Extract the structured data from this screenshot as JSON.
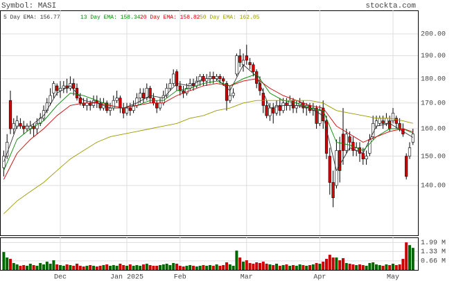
{
  "chart_data": {
    "type": "candlestick",
    "symbol": "Symbol: MASI",
    "site": "stockta.com",
    "categories": [
      null,
      null,
      null,
      null,
      null,
      null,
      null,
      null,
      null,
      null,
      null,
      null,
      null,
      null,
      null,
      null,
      null,
      "Dec",
      null,
      null,
      null,
      null,
      null,
      null,
      null,
      null,
      null,
      null,
      null,
      null,
      null,
      null,
      null,
      null,
      null,
      null,
      null,
      "Jan 2025",
      null,
      null,
      null,
      null,
      null,
      null,
      null,
      null,
      null,
      null,
      null,
      null,
      null,
      null,
      null,
      "Feb",
      null,
      null,
      null,
      null,
      null,
      null,
      null,
      null,
      null,
      null,
      null,
      null,
      null,
      null,
      null,
      null,
      null,
      null,
      null,
      "Mar",
      null,
      null,
      null,
      null,
      null,
      null,
      null,
      null,
      null,
      null,
      null,
      null,
      null,
      null,
      null,
      null,
      null,
      null,
      null,
      null,
      null,
      "Apr",
      null,
      null,
      null,
      null,
      null,
      null,
      null,
      null,
      null,
      null,
      null,
      null,
      null,
      null,
      null,
      null,
      null,
      null,
      null,
      null,
      null,
      "May",
      null,
      null,
      null,
      null,
      null,
      null
    ],
    "open": [
      146,
      150,
      171,
      160,
      161,
      162,
      161,
      160,
      160,
      161,
      160,
      162,
      164,
      167,
      170,
      174,
      177,
      175,
      176,
      177,
      176,
      178,
      176,
      172,
      170,
      169,
      170,
      169,
      171,
      170,
      168,
      170,
      167,
      168,
      171,
      172,
      168,
      166,
      168,
      167,
      169,
      172,
      174,
      172,
      176,
      172,
      170,
      168,
      170,
      173,
      176,
      178,
      183,
      177,
      175,
      174,
      176,
      178,
      177,
      179,
      181,
      179,
      180,
      181,
      180,
      181,
      180,
      178,
      171,
      173,
      182,
      190,
      186,
      190,
      187,
      186,
      183,
      178,
      174,
      169,
      165,
      168,
      166,
      169,
      167,
      170,
      169,
      171,
      168,
      169,
      170,
      168,
      169,
      167,
      168,
      162,
      168,
      163,
      150,
      141,
      140,
      152,
      158,
      152,
      157,
      155,
      152,
      153,
      151,
      149,
      151,
      157,
      161,
      162,
      163,
      162,
      163,
      163,
      164,
      162,
      160,
      150,
      150,
      155
    ],
    "high": [
      152,
      158,
      175,
      164,
      165,
      164,
      163,
      162,
      163,
      162,
      164,
      166,
      169,
      172,
      176,
      179,
      178,
      179,
      179,
      180,
      181,
      180,
      178,
      174,
      172,
      172,
      171,
      173,
      173,
      172,
      172,
      171,
      170,
      173,
      175,
      173,
      170,
      170,
      170,
      171,
      174,
      176,
      176,
      178,
      177,
      174,
      171,
      172,
      175,
      178,
      180,
      184,
      184,
      179,
      177,
      178,
      180,
      180,
      181,
      182,
      182,
      182,
      183,
      183,
      182,
      182,
      181,
      179,
      177,
      176,
      191,
      193,
      191,
      195,
      189,
      187,
      184,
      181,
      176,
      171,
      170,
      170,
      171,
      172,
      172,
      172,
      173,
      172,
      171,
      172,
      171,
      170,
      170,
      170,
      169,
      169,
      171,
      165,
      153,
      145,
      156,
      157,
      168,
      160,
      159,
      157,
      155,
      155,
      153,
      152,
      158,
      165,
      165,
      165,
      165,
      166,
      165,
      168,
      165,
      164,
      162,
      151,
      155,
      160
    ],
    "low": [
      143,
      149,
      158,
      158,
      160,
      160,
      158,
      159,
      158,
      157,
      158,
      161,
      163,
      166,
      169,
      172,
      173,
      172,
      174,
      174,
      175,
      173,
      171,
      169,
      168,
      167,
      167,
      168,
      168,
      167,
      167,
      166,
      165,
      167,
      170,
      166,
      164,
      165,
      165,
      166,
      168,
      170,
      170,
      171,
      170,
      169,
      166,
      167,
      169,
      172,
      175,
      177,
      175,
      173,
      172,
      173,
      175,
      175,
      176,
      177,
      177,
      177,
      178,
      178,
      179,
      178,
      177,
      167,
      170,
      172,
      181,
      185,
      183,
      186,
      184,
      181,
      176,
      173,
      166,
      164,
      163,
      162,
      165,
      165,
      166,
      167,
      167,
      166,
      166,
      168,
      166,
      165,
      166,
      165,
      160,
      161,
      160,
      149,
      137,
      133,
      139,
      141,
      147,
      151,
      152,
      150,
      150,
      148,
      147,
      147,
      150,
      156,
      160,
      161,
      160,
      161,
      159,
      162,
      160,
      159,
      157,
      142,
      149,
      154
    ],
    "close": [
      150,
      155,
      160,
      162,
      163,
      161,
      160,
      161,
      161,
      160,
      162,
      164,
      167,
      170,
      173,
      178,
      175,
      176,
      177,
      176,
      178,
      176,
      172,
      170,
      169,
      170,
      169,
      171,
      170,
      168,
      170,
      167,
      168,
      171,
      172,
      168,
      166,
      168,
      167,
      169,
      172,
      174,
      172,
      176,
      172,
      170,
      168,
      170,
      173,
      176,
      178,
      182,
      177,
      175,
      174,
      176,
      178,
      177,
      179,
      181,
      179,
      180,
      181,
      180,
      181,
      180,
      179,
      171,
      173,
      174,
      190,
      187,
      188,
      188,
      186,
      183,
      178,
      175,
      169,
      165,
      168,
      166,
      169,
      167,
      170,
      169,
      171,
      168,
      169,
      170,
      168,
      169,
      167,
      168,
      162,
      167,
      163,
      151,
      141,
      136,
      152,
      145,
      152,
      158,
      155,
      152,
      153,
      151,
      149,
      150,
      156,
      162,
      163,
      164,
      162,
      164,
      160,
      166,
      162,
      160,
      158,
      143,
      153,
      158
    ],
    "volume": [
      1.3,
      0.9,
      0.8,
      0.5,
      0.4,
      0.3,
      0.35,
      0.3,
      0.45,
      0.35,
      0.3,
      0.5,
      0.4,
      0.6,
      0.45,
      0.7,
      0.4,
      0.35,
      0.3,
      0.4,
      0.35,
      0.3,
      0.45,
      0.3,
      0.25,
      0.3,
      0.35,
      0.3,
      0.25,
      0.3,
      0.35,
      0.4,
      0.3,
      0.35,
      0.3,
      0.45,
      0.35,
      0.3,
      0.4,
      0.3,
      0.35,
      0.3,
      0.4,
      0.45,
      0.35,
      0.3,
      0.3,
      0.35,
      0.4,
      0.45,
      0.35,
      0.5,
      0.45,
      0.3,
      0.25,
      0.3,
      0.35,
      0.3,
      0.25,
      0.3,
      0.35,
      0.3,
      0.35,
      0.3,
      0.4,
      0.3,
      0.35,
      0.55,
      0.4,
      0.3,
      1.4,
      0.9,
      0.6,
      0.7,
      0.5,
      0.45,
      0.55,
      0.5,
      0.6,
      0.45,
      0.4,
      0.35,
      0.45,
      0.3,
      0.35,
      0.4,
      0.3,
      0.35,
      0.3,
      0.4,
      0.35,
      0.3,
      0.35,
      0.4,
      0.5,
      0.45,
      0.6,
      0.8,
      1.1,
      0.9,
      0.9,
      0.7,
      0.85,
      0.5,
      0.45,
      0.4,
      0.35,
      0.4,
      0.35,
      0.3,
      0.5,
      0.55,
      0.4,
      0.35,
      0.3,
      0.4,
      0.35,
      0.45,
      0.35,
      0.4,
      0.8,
      2.0,
      1.8,
      1.6
    ],
    "up_color": "#ffffff",
    "down_color": "#dd0000",
    "vol_up_color": "#006600",
    "vol_down_color": "#cc0000",
    "series": [
      {
        "name": "5 Day EMA: 156.77",
        "color": "#333333",
        "x": [
          0,
          4,
          8,
          12,
          16,
          20,
          24,
          28,
          32,
          36,
          40,
          44,
          48,
          52,
          56,
          60,
          64,
          68,
          72,
          76,
          80,
          84,
          88,
          92,
          96,
          100,
          104,
          108,
          112,
          116,
          120,
          123
        ],
        "values": [
          148,
          161,
          161,
          165,
          174,
          177,
          171,
          170,
          168,
          168,
          170,
          173,
          172,
          178,
          177,
          180,
          180,
          175,
          186,
          181,
          168,
          169,
          169,
          168,
          165,
          145,
          153,
          151,
          161,
          162,
          159,
          156.77
        ]
      },
      {
        "name": "13 Day EMA: 158.34",
        "color": "#008800",
        "x": [
          0,
          4,
          8,
          12,
          16,
          20,
          24,
          28,
          32,
          36,
          40,
          44,
          48,
          52,
          56,
          60,
          64,
          68,
          72,
          76,
          80,
          84,
          88,
          92,
          96,
          100,
          104,
          108,
          112,
          116,
          120,
          123
        ],
        "values": [
          145,
          156,
          160,
          163,
          169,
          174,
          173,
          171,
          169,
          168,
          169,
          171,
          171,
          175,
          176,
          178,
          179,
          177,
          180,
          182,
          174,
          171,
          170,
          168,
          167,
          155,
          154,
          152,
          157,
          160,
          160,
          158.34
        ]
      },
      {
        "name": "20 Day EMA: 158.82",
        "color": "#cc0000",
        "x": [
          0,
          4,
          8,
          12,
          16,
          20,
          24,
          28,
          32,
          36,
          40,
          44,
          48,
          52,
          56,
          60,
          64,
          68,
          72,
          76,
          80,
          84,
          88,
          92,
          96,
          100,
          104,
          108,
          112,
          116,
          120,
          123
        ],
        "values": [
          142,
          151,
          156,
          160,
          165,
          169,
          170,
          170,
          169,
          168,
          169,
          170,
          170,
          173,
          175,
          177,
          178,
          177,
          179,
          180,
          176,
          173,
          171,
          169,
          168,
          161,
          158,
          155,
          157,
          159,
          160,
          158.82
        ]
      },
      {
        "name": "50 Day EMA: 162.05",
        "color": "#999900",
        "x": [
          0,
          4,
          8,
          12,
          16,
          20,
          24,
          28,
          32,
          36,
          40,
          44,
          48,
          52,
          56,
          60,
          64,
          68,
          72,
          76,
          80,
          84,
          88,
          92,
          96,
          100,
          104,
          108,
          112,
          116,
          120,
          123
        ],
        "values": [
          131,
          135,
          138,
          141,
          145,
          149,
          152,
          155,
          157,
          158,
          159,
          160,
          161,
          162,
          164,
          165,
          167,
          168,
          170,
          171,
          171,
          171,
          171,
          171,
          170,
          167,
          166,
          165,
          164,
          164,
          163,
          162.05
        ]
      }
    ],
    "ylog": true,
    "ylim": [
      124.5,
      211.4
    ],
    "yticks": [
      {
        "value": 200,
        "label": "200.00"
      },
      {
        "value": 190,
        "label": "190.00"
      },
      {
        "value": 180,
        "label": "180.00"
      },
      {
        "value": 170,
        "label": "170.00"
      },
      {
        "value": 160,
        "label": "160.00"
      },
      {
        "value": 150,
        "label": "150.00"
      },
      {
        "value": 140,
        "label": "140.00"
      }
    ],
    "vlim": [
      0,
      2.36
    ],
    "vticks": [
      {
        "value": 1.99,
        "label": "1.99 M"
      },
      {
        "value": 1.33,
        "label": "1.33 M"
      },
      {
        "value": 0.66,
        "label": "0.66 M"
      }
    ],
    "grid": true
  }
}
